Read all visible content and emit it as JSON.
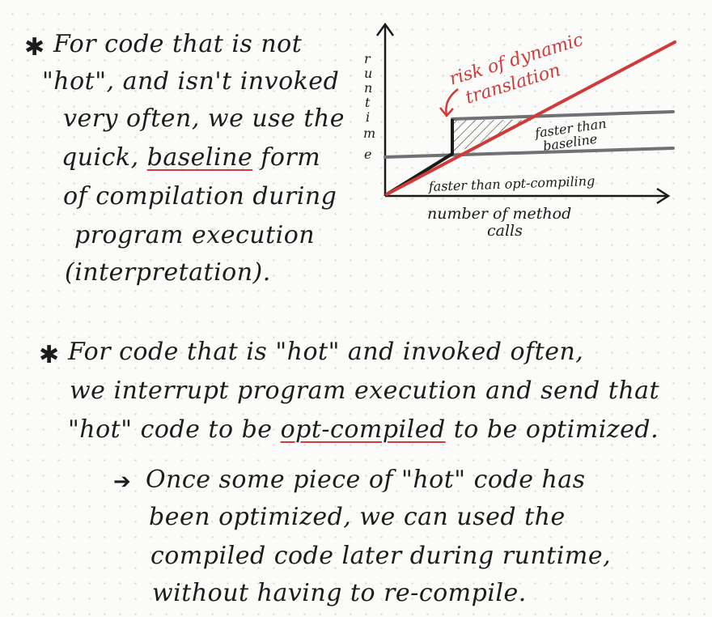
{
  "block1": {
    "bullet": "✱",
    "line1": "For code that is not",
    "line2": "\"hot\", and isn't invoked",
    "line3": "very often, we use the",
    "line4_pre": "quick, ",
    "line4_u": "baseline",
    "line4_post": " form",
    "line5": "of compilation during",
    "line6": "program execution",
    "line7": "(interpretation)."
  },
  "diagram": {
    "y_axis_letters": [
      "r",
      "u",
      "n",
      "t",
      "i",
      "m",
      "e"
    ],
    "x_axis_label_line1": "number of method",
    "x_axis_label_line2": "calls",
    "red_annotation_line1": "risk of dynamic",
    "red_annotation_line2": "translation",
    "faster_than_baseline_line1": "faster than",
    "faster_than_baseline_line2": "baseline",
    "faster_than_opt": "faster than opt-compiling",
    "colors": {
      "ink": "#1a1a1a",
      "red": "#cf3b3b",
      "gray_line": "#6e7275"
    }
  },
  "block2": {
    "bullet": "✱",
    "line1": "For code that is \"hot\" and invoked often,",
    "line2": "we interrupt program execution and send that",
    "line3_pre": "\"hot\" code to be ",
    "line3_u": "opt-compiled",
    "line3_post": " to be optimized."
  },
  "block3": {
    "arrow": "➔",
    "line1": "Once some piece of \"hot\" code has",
    "line2": "been optimized, we can used the",
    "line3": "compiled code later during runtime,",
    "line4": "without having to re-compile."
  }
}
